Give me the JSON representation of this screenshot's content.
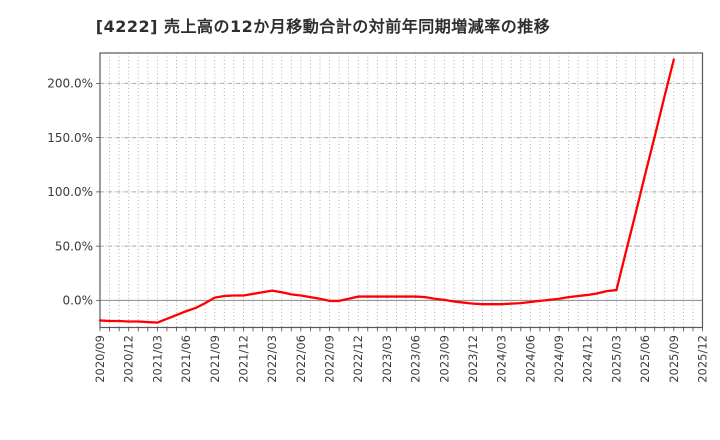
{
  "title": "[4222]  売上高の12か月移動合計の対前年同期増減率の推移",
  "colors": {
    "series_red": "#ff0000",
    "grid": "#aaaaaa",
    "zero_line": "#888888",
    "plot_border": "#595959",
    "tick": "#444444",
    "text": "#3a3a3a",
    "background": "#ffffff"
  },
  "chart_data": {
    "type": "line",
    "title": "[4222]  売上高の12か月移動合計の対前年同期増減率の推移",
    "xlabel": "",
    "ylabel": "",
    "legend_position": "none",
    "grid": true,
    "ylim": [
      -25,
      228
    ],
    "yticks": [
      0,
      50,
      100,
      150,
      200
    ],
    "ytick_labels": [
      "0.0%",
      "50.0%",
      "100.0%",
      "150.0%",
      "200.0%"
    ],
    "x_months_total": 63,
    "xtick_labels": [
      "2020/09",
      "2020/12",
      "2021/03",
      "2021/06",
      "2021/09",
      "2021/12",
      "2022/03",
      "2022/06",
      "2022/09",
      "2022/12",
      "2023/03",
      "2023/06",
      "2023/09",
      "2023/12",
      "2024/03",
      "2024/06",
      "2024/09",
      "2024/12",
      "2025/03",
      "2025/06",
      "2025/09",
      "2025/12"
    ],
    "series": [
      {
        "name": "売上高12か月移動合計の対前年同期増減率",
        "color": "#ff0000",
        "x": [
          "2020/09",
          "2020/10",
          "2020/11",
          "2020/12",
          "2021/01",
          "2021/02",
          "2021/03",
          "2021/04",
          "2021/05",
          "2021/06",
          "2021/07",
          "2021/08",
          "2021/09",
          "2021/10",
          "2021/11",
          "2021/12",
          "2022/01",
          "2022/02",
          "2022/03",
          "2022/04",
          "2022/05",
          "2022/06",
          "2022/07",
          "2022/08",
          "2022/09",
          "2022/10",
          "2022/11",
          "2022/12",
          "2023/01",
          "2023/02",
          "2023/03",
          "2023/04",
          "2023/05",
          "2023/06",
          "2023/07",
          "2023/08",
          "2023/09",
          "2023/10",
          "2023/11",
          "2023/12",
          "2024/01",
          "2024/02",
          "2024/03",
          "2024/04",
          "2024/05",
          "2024/06",
          "2024/07",
          "2024/08",
          "2024/09",
          "2024/10",
          "2024/11",
          "2024/12",
          "2025/01",
          "2025/02",
          "2025/03",
          "2025/04",
          "2025/05",
          "2025/06",
          "2025/07",
          "2025/08",
          "2025/09"
        ],
        "values": [
          -18.5,
          -19,
          -19,
          -19.5,
          -19.5,
          -20,
          -20.5,
          -17,
          -13.5,
          -10,
          -7,
          -2.5,
          2.5,
          4,
          4.5,
          4.5,
          6,
          7.5,
          9,
          7.5,
          5.5,
          4.5,
          3,
          1.5,
          -0.5,
          -0.5,
          1.5,
          3.5,
          3.5,
          3.5,
          3.5,
          3.5,
          3.5,
          3.5,
          3,
          1.5,
          0.5,
          -1,
          -2,
          -3,
          -3.5,
          -3.5,
          -3.5,
          -3,
          -2.5,
          -1.5,
          -0.5,
          0.5,
          1.5,
          3,
          4,
          5,
          6.5,
          8.5,
          9.5,
          45,
          80,
          116,
          151,
          187,
          222
        ]
      }
    ]
  }
}
